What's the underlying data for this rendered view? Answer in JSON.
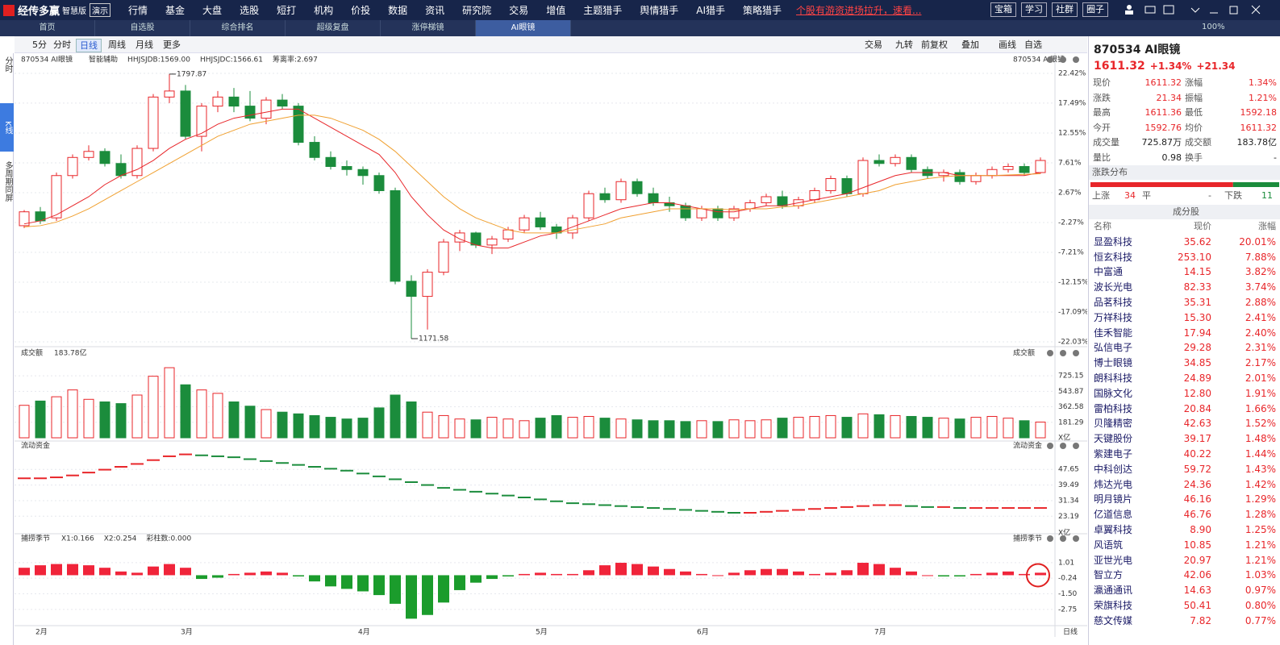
{
  "menu": {
    "logo": "经传多赢",
    "edition": "智慧版",
    "demo": "演示",
    "items": [
      "行情",
      "基金",
      "大盘",
      "选股",
      "短打",
      "机构",
      "价投",
      "数据",
      "资讯",
      "研究院",
      "交易",
      "增值",
      "主题猎手",
      "舆情猎手",
      "AI猎手",
      "策略猎手"
    ],
    "promo": "个股有游资进场拉升，速看...",
    "buttons": [
      "宝箱",
      "学习",
      "社群",
      "圈子"
    ]
  },
  "tabs": {
    "items": [
      "首页",
      "自选股",
      "综合排名",
      "超级复盘",
      "涨停梯镜",
      "AI眼镜"
    ],
    "zoom": "100%"
  },
  "toolbar": {
    "left": [
      "5分",
      "分时",
      "日线",
      "周线",
      "月线",
      "更多"
    ],
    "right": [
      "交易",
      "九转",
      "前复权",
      "叠加",
      "画线",
      "自选"
    ]
  },
  "side": [
    "分时",
    "K线",
    "多周期同屏"
  ],
  "chart_data": [
    {
      "type": "candlestick",
      "title": "870534 AI眼镜",
      "assist": "智能辅助",
      "indicators": [
        "HHJSJDB:1569.00",
        "HHJSJDC:1566.61",
        "筹离率:2.697"
      ],
      "high_label": "1797.87",
      "low_label": "1171.58",
      "up_color": "#e8262a",
      "down_color": "#1b8c3c",
      "grid": true,
      "categories": [
        null,
        "2月",
        null,
        null,
        null,
        null,
        null,
        null,
        null,
        null,
        "3月",
        null,
        null,
        null,
        null,
        null,
        null,
        null,
        null,
        null,
        null,
        "4月",
        null,
        null,
        null,
        null,
        null,
        null,
        null,
        null,
        null,
        null,
        "5月",
        null,
        null,
        null,
        null,
        null,
        null,
        null,
        null,
        null,
        "6月",
        null,
        null,
        null,
        null,
        null,
        null,
        null,
        null,
        null,
        null,
        "7月",
        null,
        null,
        null,
        null,
        null,
        null,
        null,
        null,
        null,
        null
      ],
      "open": [
        -2.8,
        -0.5,
        -1.5,
        5.5,
        8.5,
        9.5,
        7.5,
        5.5,
        10.0,
        18.5,
        19.5,
        12.0,
        17.0,
        18.5,
        17.0,
        15.0,
        18.0,
        17.0,
        11.0,
        8.5,
        7.0,
        6.5,
        5.5,
        3.0,
        -12.0,
        -14.5,
        -10.5,
        -5.5,
        -4.0,
        -6.0,
        -5.0,
        -3.5,
        -1.5,
        -3.0,
        -4.0,
        -1.5,
        2.5,
        1.5,
        4.5,
        2.5,
        1.0,
        0.5,
        -1.5,
        0.0,
        -1.5,
        0.0,
        1.0,
        2.0,
        0.5,
        1.5,
        3.0,
        5.0,
        2.5,
        8.0,
        7.5,
        8.5,
        6.5,
        5.5,
        6.0,
        4.5,
        5.5,
        6.5,
        7.0,
        6.0
      ],
      "high": [
        -0.2,
        0.3,
        6.0,
        9.0,
        10.5,
        10.0,
        9.0,
        10.5,
        19.0,
        22.3,
        20.5,
        17.5,
        19.5,
        20.0,
        19.5,
        18.5,
        19.0,
        17.5,
        12.0,
        9.5,
        8.0,
        7.0,
        6.0,
        3.5,
        -11.0,
        -10.0,
        -5.0,
        -3.5,
        -3.8,
        -4.5,
        -3.0,
        -1.0,
        -0.5,
        -2.5,
        -1.0,
        3.0,
        3.5,
        5.0,
        5.0,
        3.5,
        2.0,
        1.0,
        0.5,
        0.5,
        0.5,
        1.5,
        2.5,
        3.0,
        2.0,
        3.5,
        5.5,
        5.5,
        8.5,
        9.0,
        9.0,
        9.0,
        7.0,
        6.5,
        6.5,
        6.0,
        7.0,
        7.5,
        7.5,
        8.5
      ],
      "low": [
        -3.2,
        -2.5,
        -2.0,
        5.0,
        8.0,
        7.0,
        5.0,
        5.0,
        9.5,
        17.5,
        11.5,
        9.5,
        16.0,
        16.0,
        14.5,
        14.0,
        16.5,
        10.5,
        8.0,
        6.5,
        5.5,
        4.0,
        2.5,
        -12.5,
        -21.5,
        -20.0,
        -11.0,
        -7.0,
        -6.5,
        -7.5,
        -5.5,
        -4.0,
        -3.5,
        -5.0,
        -5.0,
        -2.0,
        1.0,
        1.0,
        2.0,
        0.5,
        -0.5,
        -2.0,
        -2.0,
        -2.0,
        -2.0,
        -0.5,
        0.5,
        0.0,
        0.0,
        1.0,
        2.5,
        2.0,
        2.0,
        7.0,
        7.0,
        6.0,
        5.0,
        4.5,
        4.0,
        4.0,
        5.0,
        6.0,
        5.5,
        5.8
      ],
      "close": [
        -0.5,
        -2.0,
        5.5,
        8.5,
        9.5,
        7.5,
        5.5,
        10.0,
        18.5,
        19.5,
        12.0,
        17.0,
        18.5,
        17.0,
        15.0,
        18.0,
        17.0,
        11.0,
        8.5,
        7.0,
        6.5,
        5.5,
        3.0,
        -12.0,
        -14.5,
        -10.5,
        -5.5,
        -4.0,
        -6.0,
        -5.0,
        -3.5,
        -1.5,
        -3.0,
        -4.0,
        -1.5,
        2.5,
        1.5,
        4.5,
        2.5,
        1.0,
        0.5,
        -1.5,
        0.0,
        -1.5,
        0.0,
        1.0,
        2.0,
        0.5,
        1.5,
        3.0,
        5.0,
        2.5,
        8.0,
        7.5,
        8.5,
        6.5,
        5.5,
        6.0,
        4.5,
        5.5,
        6.5,
        7.0,
        6.0,
        8.0
      ],
      "ma": [
        {
          "color": "#e8262a",
          "values": [
            -2.5,
            -2.0,
            -1.0,
            0.5,
            2.0,
            4.0,
            5.5,
            6.5,
            8.0,
            10.0,
            11.5,
            12.5,
            14.0,
            15.0,
            15.5,
            16.0,
            16.5,
            16.5,
            15.0,
            13.5,
            12.0,
            10.5,
            9.0,
            6.0,
            2.0,
            -1.0,
            -3.5,
            -5.0,
            -6.0,
            -6.5,
            -6.5,
            -5.5,
            -4.5,
            -4.0,
            -3.0,
            -2.0,
            -1.0,
            0.0,
            0.5,
            1.0,
            1.0,
            0.5,
            0.0,
            -0.5,
            -0.5,
            0.0,
            0.5,
            0.5,
            1.0,
            1.5,
            2.0,
            2.5,
            3.5,
            4.5,
            5.5,
            6.0,
            6.0,
            6.0,
            5.5,
            5.5,
            5.5,
            5.5,
            5.5,
            6.0
          ]
        },
        {
          "color": "#f0a030",
          "values": [
            -3.0,
            -2.8,
            -2.2,
            -1.2,
            0.0,
            1.5,
            3.0,
            4.5,
            6.0,
            7.5,
            9.0,
            10.5,
            12.0,
            13.0,
            14.0,
            14.5,
            15.0,
            15.5,
            15.5,
            15.0,
            14.0,
            13.0,
            11.5,
            9.5,
            7.0,
            4.5,
            2.0,
            0.0,
            -1.5,
            -2.5,
            -3.5,
            -4.0,
            -4.0,
            -4.0,
            -3.5,
            -3.0,
            -2.5,
            -1.5,
            -1.0,
            -0.5,
            0.0,
            0.0,
            0.0,
            0.0,
            -0.2,
            0.0,
            0.0,
            0.3,
            0.5,
            1.0,
            1.5,
            2.0,
            2.5,
            3.0,
            4.0,
            4.5,
            5.0,
            5.3,
            5.5,
            5.5,
            5.5,
            5.6,
            5.7,
            5.8
          ]
        }
      ],
      "ylim": [
        -22.03,
        22.42
      ],
      "yticks": [
        {
          "value": 22.42,
          "label": "22.42%"
        },
        {
          "value": 17.49,
          "label": "17.49%"
        },
        {
          "value": 12.55,
          "label": "12.55%"
        },
        {
          "value": 7.61,
          "label": "7.61%"
        },
        {
          "value": 2.67,
          "label": "2.67%"
        },
        {
          "value": -2.27,
          "label": "-2.27%"
        },
        {
          "value": -7.21,
          "label": "-7.21%"
        },
        {
          "value": -12.15,
          "label": "-12.15%"
        },
        {
          "value": -17.09,
          "label": "-17.09%"
        },
        {
          "value": -22.03,
          "label": "-22.03%"
        }
      ]
    },
    {
      "type": "volume",
      "title": "成交额",
      "subtitle": "183.78亿",
      "unit": "X亿",
      "values": [
        380,
        430,
        480,
        560,
        450,
        420,
        400,
        500,
        720,
        820,
        620,
        560,
        520,
        420,
        370,
        330,
        300,
        280,
        260,
        240,
        220,
        230,
        350,
        500,
        420,
        300,
        260,
        220,
        210,
        240,
        220,
        200,
        230,
        260,
        240,
        250,
        230,
        220,
        210,
        200,
        200,
        190,
        200,
        190,
        210,
        200,
        210,
        230,
        240,
        250,
        260,
        240,
        280,
        270,
        260,
        250,
        240,
        230,
        220,
        240,
        250,
        230,
        200,
        184
      ],
      "ylim": [
        0,
        830
      ],
      "yticks": [
        181.29,
        362.58,
        543.87,
        725.15
      ]
    },
    {
      "type": "dash",
      "title": "流动资金",
      "unit": "X亿",
      "up_color": "#e8262a",
      "down_color": "#1b8c3c",
      "values": [
        43,
        43,
        43.5,
        44.5,
        46,
        47.5,
        49,
        50.5,
        52.5,
        54.5,
        55.5,
        55,
        54.5,
        54,
        53,
        52,
        51,
        50,
        49,
        48,
        47,
        45.5,
        44,
        42.5,
        41,
        39.5,
        38,
        37,
        36,
        35,
        34,
        33,
        32,
        31,
        30,
        29.5,
        29,
        28.5,
        28,
        27.5,
        27,
        26.5,
        26,
        25.5,
        25,
        25,
        25.5,
        26,
        26.5,
        27,
        27.5,
        28,
        28.5,
        29,
        29,
        28.5,
        28,
        28,
        27.5,
        27.5,
        27.5,
        27.5,
        27.5,
        27.5
      ],
      "ylim": [
        17,
        57
      ],
      "yticks": [
        23.19,
        31.34,
        39.49,
        47.65
      ]
    },
    {
      "type": "bar",
      "title": "捕捞季节",
      "indicators": [
        "X1:0.166",
        "X2:0.254",
        "彩柱数:0.000"
      ],
      "up_color": "#f0243a",
      "down_color": "#1b9c2c",
      "values": [
        0.6,
        0.8,
        0.9,
        0.9,
        0.8,
        0.6,
        0.3,
        0.2,
        0.7,
        0.9,
        0.6,
        -0.3,
        -0.2,
        0.1,
        0.2,
        0.3,
        0.2,
        -0.1,
        -0.5,
        -0.9,
        -1.1,
        -1.3,
        -1.6,
        -2.3,
        -3.5,
        -3.2,
        -2.2,
        -1.2,
        -0.6,
        -0.3,
        -0.1,
        0.1,
        0.2,
        0.1,
        0.1,
        0.4,
        0.8,
        1.0,
        0.9,
        0.7,
        0.5,
        0.3,
        0.1,
        0,
        0.2,
        0.4,
        0.5,
        0.5,
        0.3,
        0.1,
        0.2,
        0.4,
        1.0,
        0.9,
        0.6,
        0.3,
        0.0,
        -0.1,
        -0.1,
        0.1,
        0.2,
        0.3,
        0.1,
        0.2
      ],
      "ylim": [
        -3.8,
        2.3
      ],
      "yticks": [
        {
          "value": 1.01,
          "label": "1.01"
        },
        {
          "value": -0.24,
          "label": "-0.24"
        },
        {
          "value": -1.5,
          "label": "-1.50"
        },
        {
          "value": -2.75,
          "label": "-2.75"
        }
      ]
    }
  ],
  "quote": {
    "title": "870534 AI眼镜",
    "price": "1611.32",
    "pct": "+1.34%",
    "chg": "+21.34",
    "rows": [
      [
        "现价",
        "1611.32",
        "涨幅",
        "1.34%"
      ],
      [
        "涨跌",
        "21.34",
        "振幅",
        "1.21%"
      ],
      [
        "最高",
        "1611.36",
        "最低",
        "1592.18"
      ],
      [
        "今开",
        "1592.76",
        "均价",
        "1611.32"
      ],
      [
        "成交量",
        "725.87万",
        "成交额",
        "183.78亿"
      ],
      [
        "量比",
        "0.98",
        "换手",
        "-"
      ]
    ]
  },
  "distribution": {
    "title": "涨跌分布",
    "up_label": "上涨",
    "up": 34,
    "flat_label": "平",
    "flat": "-",
    "down_label": "下跌",
    "down": 11
  },
  "constituents": {
    "title": "成分股",
    "columns": [
      "名称",
      "现价",
      "涨幅"
    ],
    "rows": [
      [
        "显盈科技",
        "35.62",
        "20.01%"
      ],
      [
        "恒玄科技",
        "253.10",
        "7.88%"
      ],
      [
        "中富通",
        "14.15",
        "3.82%"
      ],
      [
        "波长光电",
        "82.33",
        "3.74%"
      ],
      [
        "品茗科技",
        "35.31",
        "2.88%"
      ],
      [
        "万祥科技",
        "15.30",
        "2.41%"
      ],
      [
        "佳禾智能",
        "17.94",
        "2.40%"
      ],
      [
        "弘信电子",
        "29.28",
        "2.31%"
      ],
      [
        "博士眼镜",
        "34.85",
        "2.17%"
      ],
      [
        "朗科科技",
        "24.89",
        "2.01%"
      ],
      [
        "国脉文化",
        "12.80",
        "1.91%"
      ],
      [
        "雷柏科技",
        "20.84",
        "1.66%"
      ],
      [
        "贝隆精密",
        "42.63",
        "1.52%"
      ],
      [
        "天键股份",
        "39.17",
        "1.48%"
      ],
      [
        "紫建电子",
        "40.22",
        "1.44%"
      ],
      [
        "中科创达",
        "59.72",
        "1.43%"
      ],
      [
        "炜达光电",
        "24.36",
        "1.42%"
      ],
      [
        "明月镜片",
        "46.16",
        "1.29%"
      ],
      [
        "亿道信息",
        "46.76",
        "1.28%"
      ],
      [
        "卓翼科技",
        "8.90",
        "1.25%"
      ],
      [
        "风语筑",
        "10.85",
        "1.21%"
      ],
      [
        "亚世光电",
        "20.97",
        "1.21%"
      ],
      [
        "智立方",
        "42.06",
        "1.03%"
      ],
      [
        "瀛通通讯",
        "14.63",
        "0.97%"
      ],
      [
        "荣旗科技",
        "50.41",
        "0.80%"
      ],
      [
        "慈文传媒",
        "7.82",
        "0.77%"
      ]
    ]
  }
}
